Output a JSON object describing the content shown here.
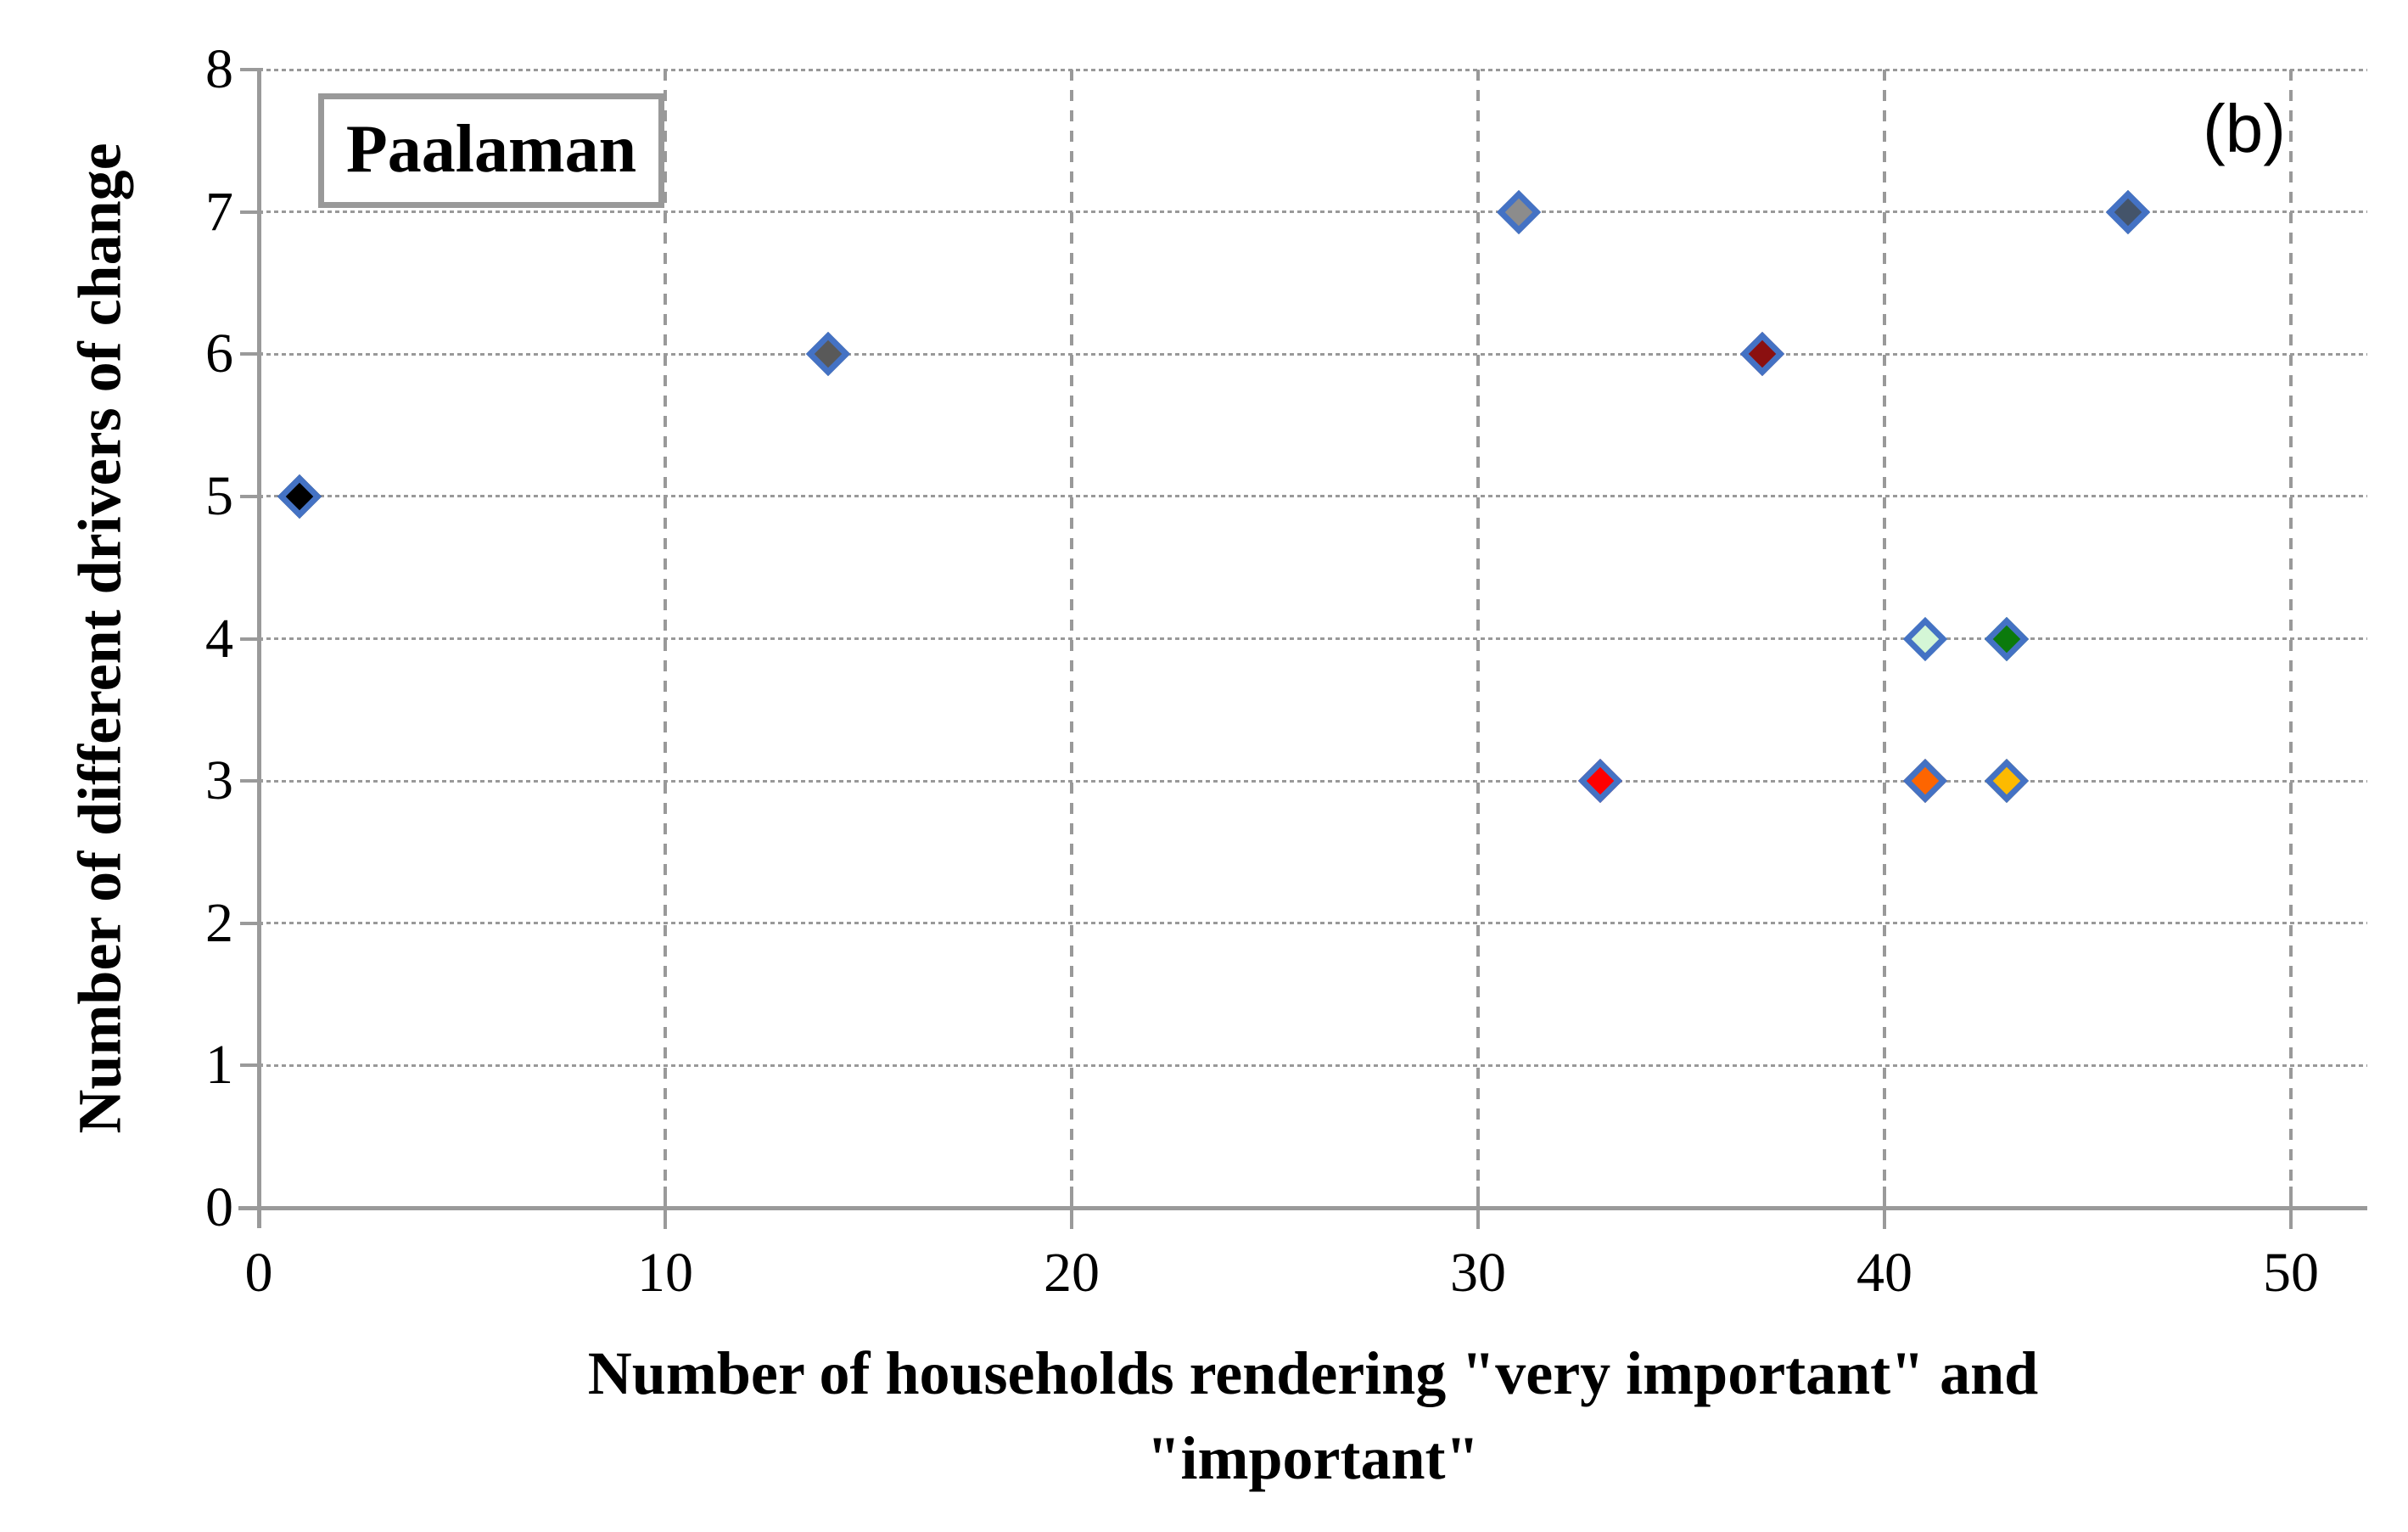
{
  "panel_label": "(b)",
  "chart_data": {
    "type": "scatter",
    "series_label": "Paalaman",
    "xlabel_line1": "Number of households rendering \"very important\" and",
    "xlabel_line2": "\"important\"",
    "ylabel": "Number of different drivers of change",
    "xlim": [
      0,
      52
    ],
    "ylim": [
      0,
      8
    ],
    "x_ticks": [
      0,
      10,
      20,
      30,
      40,
      50
    ],
    "y_ticks": [
      0,
      1,
      2,
      3,
      4,
      5,
      6,
      7,
      8
    ],
    "grid": "both-dashed",
    "legend_position": "none",
    "marker_shape": "diamond",
    "marker_border_color": "#4472C4",
    "axis_color": "#9a9a9a",
    "grid_color": "#999999",
    "points": [
      {
        "x": 1,
        "y": 5,
        "color": "#000000"
      },
      {
        "x": 14,
        "y": 6,
        "color": "#595959"
      },
      {
        "x": 31,
        "y": 7,
        "color": "#8C8C8C"
      },
      {
        "x": 46,
        "y": 7,
        "color": "#44546A"
      },
      {
        "x": 37,
        "y": 6,
        "color": "#8B1010"
      },
      {
        "x": 41,
        "y": 4,
        "color": "#D4F6D6"
      },
      {
        "x": 43,
        "y": 4,
        "color": "#0B7A0C"
      },
      {
        "x": 33,
        "y": 3,
        "color": "#FF0000"
      },
      {
        "x": 41,
        "y": 3,
        "color": "#FD6500"
      },
      {
        "x": 43,
        "y": 3,
        "color": "#FDBA00"
      }
    ]
  }
}
